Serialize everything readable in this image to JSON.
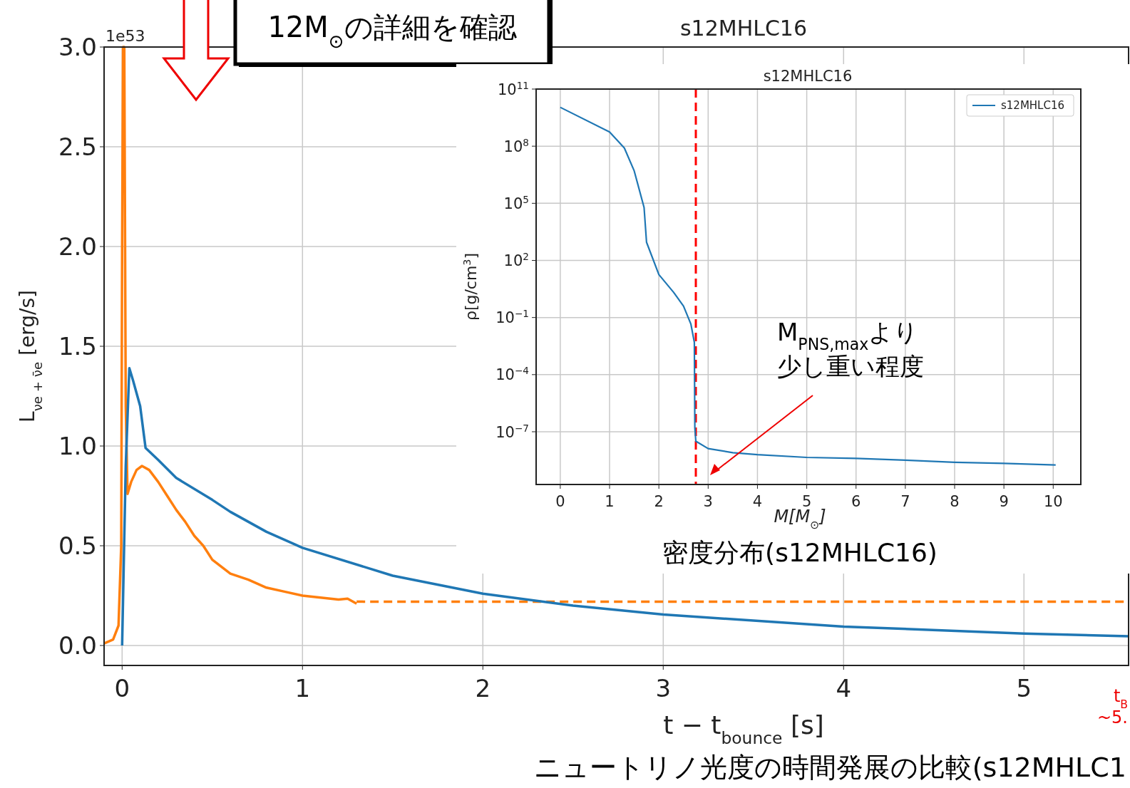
{
  "chart_data": [
    {
      "type": "line",
      "title": "s12MHLC16",
      "xlabel": "t − t$_{bounce}$ [s]",
      "ylabel": "L$_{νe + ν̄e}$  [erg/s]",
      "xlim": [
        -0.1,
        5.58
      ],
      "ylim": [
        -0.1,
        3.0
      ],
      "xticks": [
        0,
        1,
        2,
        3,
        4,
        5
      ],
      "yticks": [
        {
          "value": 0,
          "label": "0.0"
        },
        {
          "value": 0.5,
          "label": "0.5"
        },
        {
          "value": 1,
          "label": "1.0"
        },
        {
          "value": 1.5,
          "label": "1.5"
        },
        {
          "value": 2,
          "label": "2.0"
        },
        {
          "value": 2.5,
          "label": "2.5"
        },
        {
          "value": 3,
          "label": "3.0"
        }
      ],
      "grid": true,
      "series": [
        {
          "color": "#ff7f0e",
          "x": [
            -0.1,
            -0.05,
            -0.02,
            -0.005,
            0,
            0.005,
            0.012,
            0.02,
            0.03,
            0.05,
            0.08,
            0.11,
            0.15,
            0.2,
            0.25,
            0.3,
            0.35,
            0.4,
            0.45,
            0.5,
            0.6,
            0.7,
            0.8,
            0.9,
            1.0,
            1.1,
            1.2,
            1.25,
            1.3
          ],
          "values": [
            0.01,
            0.03,
            0.1,
            0.5,
            2.0,
            3.0,
            3.0,
            1.2,
            0.76,
            0.82,
            0.88,
            0.9,
            0.88,
            0.82,
            0.75,
            0.68,
            0.62,
            0.55,
            0.5,
            0.43,
            0.36,
            0.33,
            0.29,
            0.27,
            0.25,
            0.24,
            0.23,
            0.235,
            0.21
          ]
        },
        {
          "color": "#ff7f0e",
          "line_style": "dashed",
          "x": [
            1.3,
            5.58
          ],
          "values": [
            0.22,
            0.22
          ]
        },
        {
          "color": "#1f77b4",
          "x": [
            0,
            0.02,
            0.04,
            0.06,
            0.1,
            0.13,
            0.2,
            0.3,
            0.5,
            0.6,
            0.8,
            1.0,
            1.5,
            2.0,
            2.5,
            3.0,
            4.0,
            5.0,
            5.58
          ],
          "values": [
            0,
            0.9,
            1.39,
            1.33,
            1.2,
            0.99,
            0.93,
            0.84,
            0.73,
            0.67,
            0.57,
            0.49,
            0.35,
            0.26,
            0.2,
            0.155,
            0.095,
            0.06,
            0.046
          ]
        }
      ],
      "annotations": [
        "1e53",
        "12M$_{⊙}$の詳細を確認",
        "t$_{B}$\n~5.",
        "ニュートリノ光度の時間発展の比較(s12MHLC1"
      ]
    },
    {
      "type": "line",
      "title": "s12MHLC16",
      "xlabel": "M[M$_{⊙}$]",
      "ylabel": "ρ[g/cm$^{3}$]",
      "log": "y",
      "xlim": [
        -0.49,
        10.56
      ],
      "ylim": [
        1.7e-10,
        100000000000.0
      ],
      "xticks": [
        0,
        1,
        2,
        3,
        4,
        5,
        6,
        7,
        8,
        9,
        10
      ],
      "yticks": [
        {
          "value": 1e-07,
          "label": "10$^{−7}$"
        },
        {
          "value": 0.0001,
          "label": "10$^{−4}$"
        },
        {
          "value": 0.1,
          "label": "10$^{−1}$"
        },
        {
          "value": 100,
          "label": "10$^{2}$"
        },
        {
          "value": 100000.0,
          "label": "10$^{5}$"
        },
        {
          "value": 100000000.0,
          "label": "10$^{8}$"
        },
        {
          "value": 100000000000.0,
          "label": "10$^{11}$"
        }
      ],
      "grid": true,
      "legend": "top right",
      "series": [
        {
          "name": "s12MHLC16",
          "color": "#1f77b4",
          "x": [
            0,
            1,
            1.3,
            1.5,
            1.7,
            1.75,
            2,
            2.3,
            2.5,
            2.65,
            2.72,
            2.73,
            2.75,
            3,
            3.5,
            4,
            5,
            6,
            7,
            8,
            9,
            10.05
          ],
          "values": [
            11000000000.0,
            560000000.0,
            80000000.0,
            5000000.0,
            60000.0,
            900,
            18,
            2.1,
            0.4,
            0.045,
            0.005,
            1.6e-07,
            3.2e-08,
            1.3e-08,
            8e-09,
            6.3e-09,
            4.5e-09,
            4e-09,
            3.2e-09,
            2.5e-09,
            2.2e-09,
            1.8e-09
          ]
        }
      ],
      "ref_lines": [
        {
          "axis": "x",
          "value": 2.75,
          "color": "#ff0000",
          "line_style": "dashed"
        }
      ],
      "annotations": [
        "M$_{PNS,max}$より",
        "少し重い程度",
        "密度分布(s12MHLC16)"
      ]
    }
  ]
}
